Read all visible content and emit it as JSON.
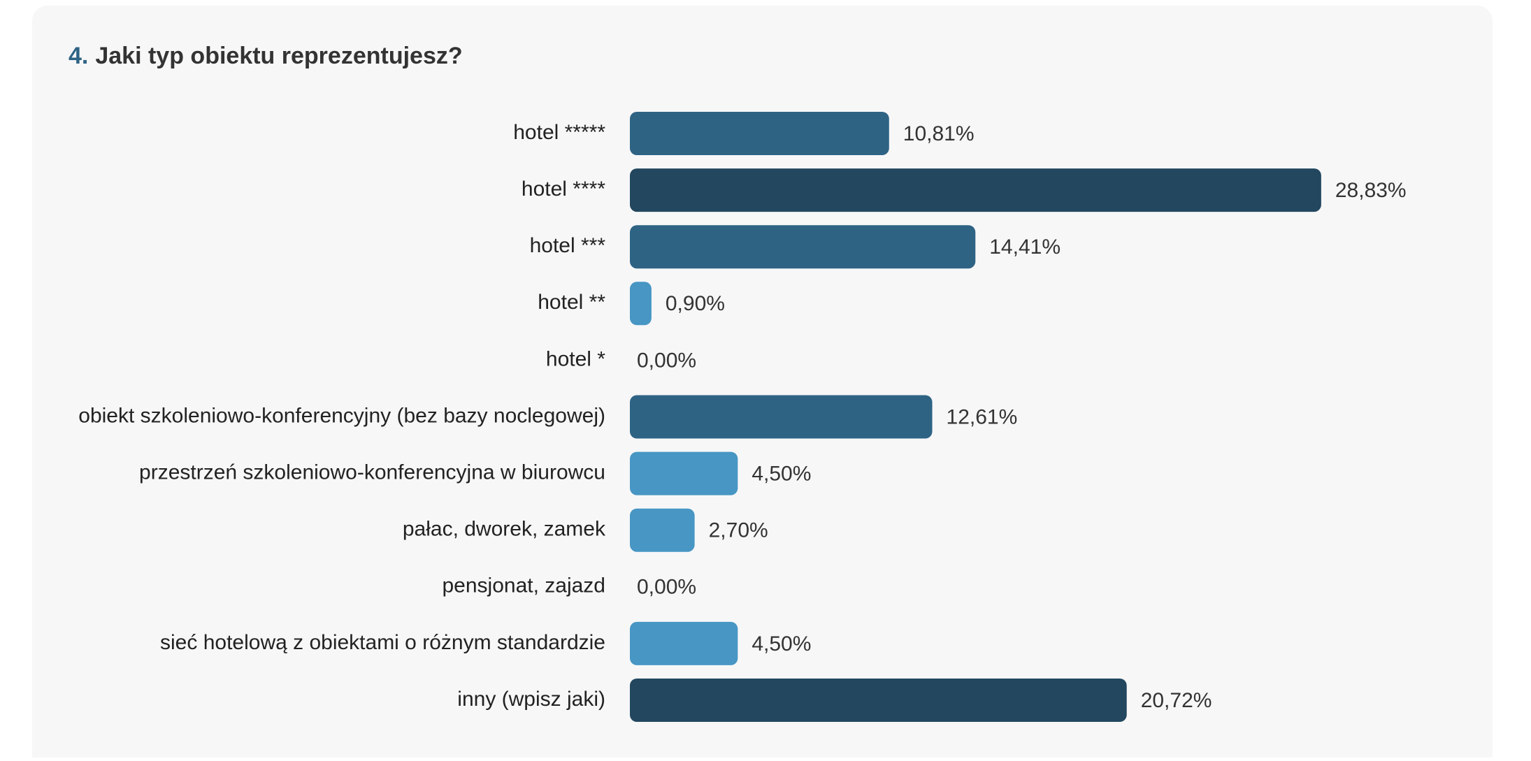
{
  "chart_data": {
    "type": "bar",
    "orientation": "horizontal",
    "title_number": "4.",
    "title": "Jaki typ obiektu reprezentujesz?",
    "categories": [
      "hotel *****",
      "hotel ****",
      "hotel ***",
      "hotel **",
      "hotel *",
      "obiekt szkoleniowo-konferencyjny (bez bazy noclegowej)",
      "przestrzeń szkoleniowo-konferencyjna w biurowcu",
      "pałac, dworek, zamek",
      "pensjonat, zajazd",
      "sieć hotelową z obiektami o różnym standardzie",
      "inny (wpisz jaki)"
    ],
    "values": [
      10.81,
      28.83,
      14.41,
      0.9,
      0.0,
      12.61,
      4.5,
      2.7,
      0.0,
      4.5,
      20.72
    ],
    "value_labels": [
      "10,81%",
      "28,83%",
      "14,41%",
      "0,90%",
      "0,00%",
      "12,61%",
      "4,50%",
      "2,70%",
      "0,00%",
      "4,50%",
      "20,72%"
    ],
    "colors": [
      "#2e6384",
      "#22475f",
      "#2e6384",
      "#4796c4",
      "#4796c4",
      "#2e6384",
      "#4796c4",
      "#4796c4",
      "#4796c4",
      "#4796c4",
      "#22475f"
    ]
  }
}
